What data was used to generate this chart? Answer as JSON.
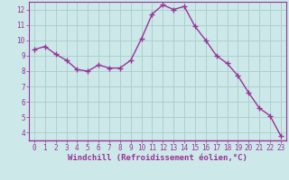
{
  "x": [
    0,
    1,
    2,
    3,
    4,
    5,
    6,
    7,
    8,
    9,
    10,
    11,
    12,
    13,
    14,
    15,
    16,
    17,
    18,
    19,
    20,
    21,
    22,
    23
  ],
  "y": [
    9.4,
    9.6,
    9.1,
    8.7,
    8.1,
    8.0,
    8.4,
    8.2,
    8.2,
    8.7,
    10.1,
    11.7,
    12.3,
    12.0,
    12.2,
    10.9,
    10.0,
    9.0,
    8.5,
    7.7,
    6.6,
    5.6,
    5.1,
    3.8
  ],
  "line_color": "#993399",
  "marker_color": "#993399",
  "bg_color": "#cce8e8",
  "grid_color": "#aacccc",
  "xlabel": "Windchill (Refroidissement éolien,°C)",
  "xlim": [
    -0.5,
    23.5
  ],
  "ylim": [
    3.5,
    12.5
  ],
  "yticks": [
    4,
    5,
    6,
    7,
    8,
    9,
    10,
    11,
    12
  ],
  "xticks": [
    0,
    1,
    2,
    3,
    4,
    5,
    6,
    7,
    8,
    9,
    10,
    11,
    12,
    13,
    14,
    15,
    16,
    17,
    18,
    19,
    20,
    21,
    22,
    23
  ],
  "tick_fontsize": 5.5,
  "xlabel_fontsize": 6.5,
  "line_width": 1.0,
  "marker_size": 2.5
}
